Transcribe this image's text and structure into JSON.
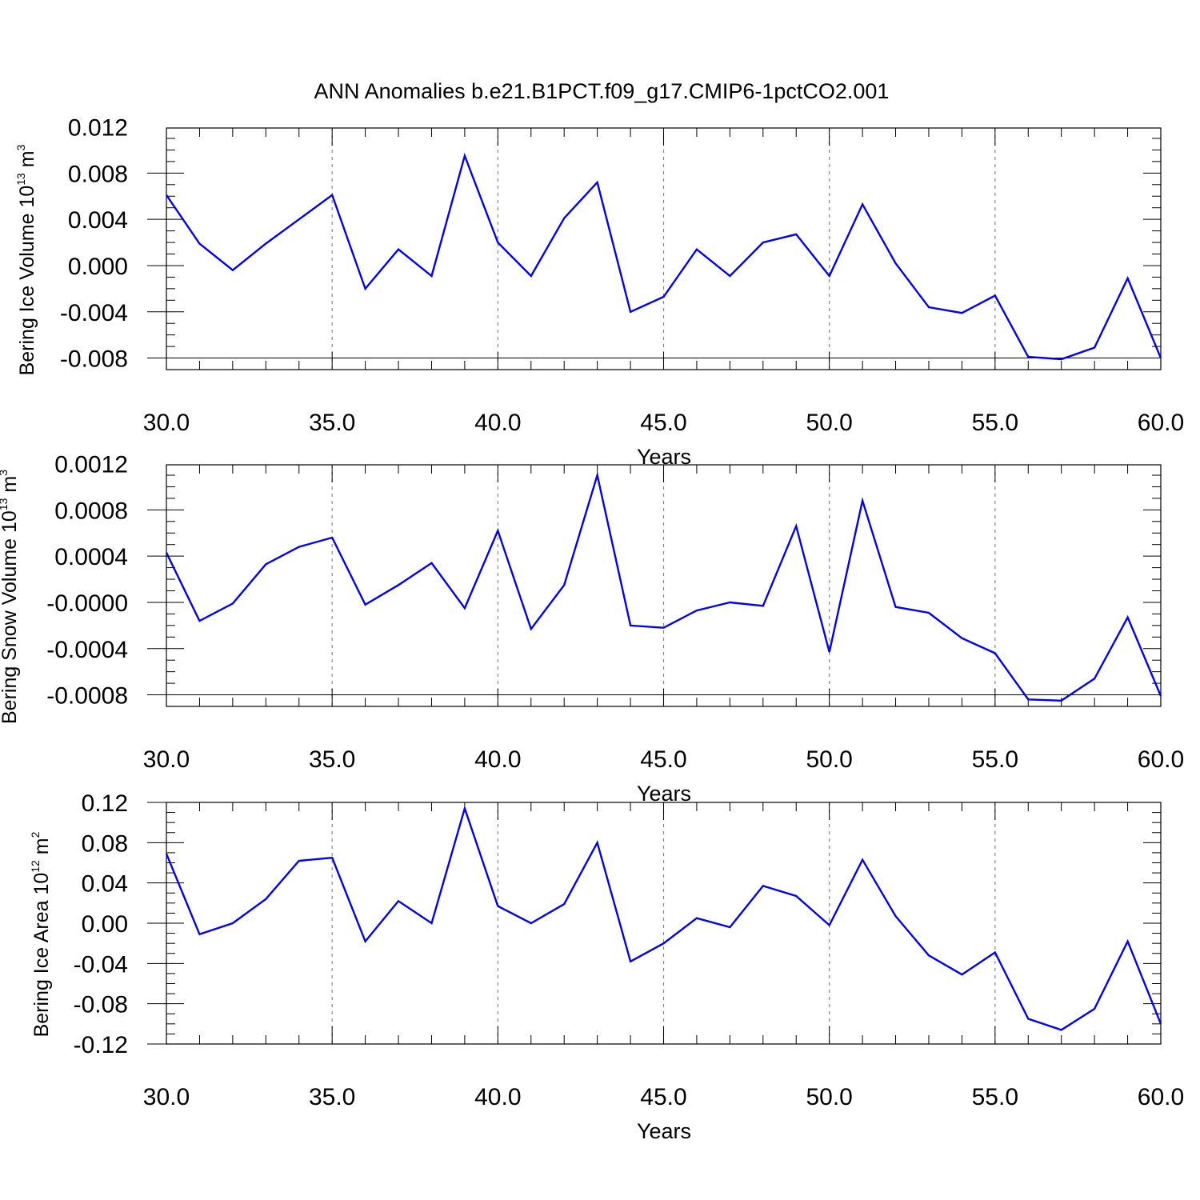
{
  "figure": {
    "title": "ANN Anomalies b.e21.B1PCT.f09_g17.CMIP6-1pctCO2.001"
  },
  "chart_data": [
    {
      "type": "line",
      "ylabel": "Bering Ice Volume 10",
      "ylabel_exp": "13",
      "ylabel_unit": "m",
      "ylabel_unit_exp": "3",
      "xlabel": "Years",
      "xlim": [
        30,
        60
      ],
      "ylim": [
        -0.009,
        0.0119
      ],
      "xticks": [
        30,
        35,
        40,
        45,
        50,
        55,
        60
      ],
      "xtick_labels": [
        "30.0",
        "35.0",
        "40.0",
        "45.0",
        "50.0",
        "55.0",
        "60.0"
      ],
      "yticks": [
        0.012,
        0.008,
        0.004,
        0.0,
        -0.004,
        -0.008
      ],
      "ytick_labels": [
        "0.012",
        "0.008",
        "0.004",
        "0.000",
        "-0.004",
        "-0.008"
      ],
      "y_minor_step": 0.001,
      "grid": "vertical dashed at major x ticks",
      "line_color": "#0000ff",
      "x": [
        30,
        31,
        32,
        33,
        34,
        35,
        36,
        37,
        38,
        39,
        40,
        41,
        42,
        43,
        44,
        45,
        46,
        47,
        48,
        49,
        50,
        51,
        52,
        53,
        54,
        55,
        56,
        57,
        58,
        59,
        60
      ],
      "values": [
        0.0061,
        0.0019,
        -0.0004,
        0.0019,
        0.004,
        0.0061,
        -0.002,
        0.0014,
        -0.0009,
        0.0095,
        0.002,
        -0.0009,
        0.0041,
        0.0072,
        -0.004,
        -0.0027,
        0.0014,
        -0.0009,
        0.002,
        0.0027,
        -0.0009,
        0.0053,
        0.0002,
        -0.0036,
        -0.0041,
        -0.0026,
        -0.0079,
        -0.0081,
        -0.0071,
        -0.0011,
        -0.008
      ]
    },
    {
      "type": "line",
      "ylabel": "Bering Snow Volume 10",
      "ylabel_exp": "13",
      "ylabel_unit": "m",
      "ylabel_unit_exp": "3",
      "xlabel": "Years",
      "xlim": [
        30,
        60
      ],
      "ylim": [
        -0.0009,
        0.00119
      ],
      "xticks": [
        30,
        35,
        40,
        45,
        50,
        55,
        60
      ],
      "xtick_labels": [
        "30.0",
        "35.0",
        "40.0",
        "45.0",
        "50.0",
        "55.0",
        "60.0"
      ],
      "yticks": [
        0.0012,
        0.0008,
        0.0004,
        0.0,
        -0.0004,
        -0.0008
      ],
      "ytick_labels": [
        "0.0012",
        "0.0008",
        "0.0004",
        "-0.0000",
        "-0.0004",
        "-0.0008"
      ],
      "y_minor_step": 0.0001,
      "grid": "vertical dashed at major x ticks",
      "line_color": "#0000ff",
      "x": [
        30,
        31,
        32,
        33,
        34,
        35,
        36,
        37,
        38,
        39,
        40,
        41,
        42,
        43,
        44,
        45,
        46,
        47,
        48,
        49,
        50,
        51,
        52,
        53,
        54,
        55,
        56,
        57,
        58,
        59,
        60
      ],
      "values": [
        0.00043,
        -0.00016,
        -1e-05,
        0.00033,
        0.00048,
        0.00056,
        -2e-05,
        0.00015,
        0.00034,
        -5e-05,
        0.00062,
        -0.00023,
        0.00015,
        0.0011,
        -0.0002,
        -0.00022,
        -7e-05,
        0.0,
        -3e-05,
        0.00066,
        -0.00043,
        0.00088,
        -4e-05,
        -9e-05,
        -0.00031,
        -0.00044,
        -0.00084,
        -0.00085,
        -0.00066,
        -0.00013,
        -0.00081
      ]
    },
    {
      "type": "line",
      "ylabel": "Bering Ice Area 10",
      "ylabel_exp": "12",
      "ylabel_unit": "m",
      "ylabel_unit_exp": "2",
      "xlabel": "Years",
      "xlim": [
        30,
        60
      ],
      "ylim": [
        -0.12,
        0.12
      ],
      "xticks": [
        30,
        35,
        40,
        45,
        50,
        55,
        60
      ],
      "xtick_labels": [
        "30.0",
        "35.0",
        "40.0",
        "45.0",
        "50.0",
        "55.0",
        "60.0"
      ],
      "yticks": [
        0.12,
        0.08,
        0.04,
        0.0,
        -0.04,
        -0.08,
        -0.12
      ],
      "ytick_labels": [
        "0.12",
        "0.08",
        "0.04",
        "0.00",
        "-0.04",
        "-0.08",
        "-0.12"
      ],
      "y_minor_step": 0.01,
      "grid": "vertical dashed at major x ticks",
      "line_color": "#0000ff",
      "x": [
        30,
        31,
        32,
        33,
        34,
        35,
        36,
        37,
        38,
        39,
        40,
        41,
        42,
        43,
        44,
        45,
        46,
        47,
        48,
        49,
        50,
        51,
        52,
        53,
        54,
        55,
        56,
        57,
        58,
        59,
        60
      ],
      "values": [
        0.069,
        -0.011,
        0.0,
        0.024,
        0.062,
        0.065,
        -0.018,
        0.022,
        0.0,
        0.114,
        0.017,
        0.0,
        0.019,
        0.08,
        -0.038,
        -0.02,
        0.005,
        -0.004,
        0.037,
        0.027,
        -0.002,
        0.063,
        0.007,
        -0.032,
        -0.051,
        -0.029,
        -0.095,
        -0.106,
        -0.085,
        -0.018,
        -0.1
      ]
    }
  ]
}
